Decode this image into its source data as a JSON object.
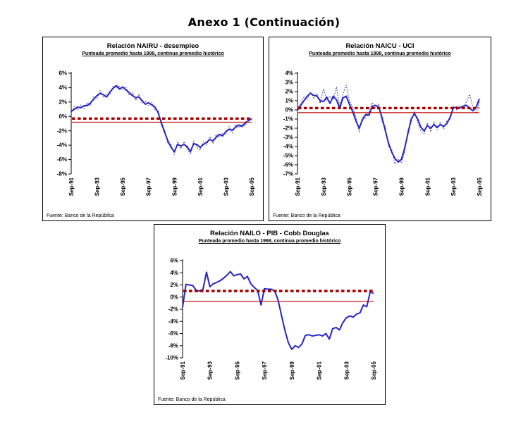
{
  "page": {
    "title": "Anexo 1 (Continuación)"
  },
  "chart_data": [
    {
      "type": "line",
      "title": "Relación NAIRU - desempleo",
      "subtitle": "Punteada promedio hasta 1998, continua promedio histórico",
      "source": "Fuente: Banco de la República",
      "x_tick_labels": [
        "Sep-91",
        "Sep-93",
        "Sep-95",
        "Sep-97",
        "Sep-99",
        "Sep-01",
        "Sep-03",
        "Sep-05"
      ],
      "points_per_tick": 8,
      "ylim": [
        -8,
        6
      ],
      "yticks": [
        6,
        4,
        2,
        0,
        -2,
        -4,
        -6,
        -8
      ],
      "ytick_labels": [
        "6%",
        "4%",
        "2%",
        "0%",
        "-2%",
        "-4%",
        "-6%",
        "-8%"
      ],
      "grid": false,
      "legend": "none",
      "series": [
        {
          "name": "brecha continua (promedio histórico)",
          "style": "solid",
          "color": "#2424cd",
          "values": [
            0.7,
            1.0,
            1.3,
            1.2,
            1.5,
            1.5,
            1.9,
            2.4,
            2.9,
            3.2,
            3.0,
            2.7,
            3.4,
            3.9,
            4.3,
            3.8,
            4.1,
            3.7,
            3.3,
            2.9,
            2.6,
            2.7,
            2.2,
            1.7,
            1.9,
            1.6,
            1.3,
            0.5,
            -0.9,
            -2.2,
            -3.4,
            -4.3,
            -4.9,
            -3.9,
            -4.1,
            -3.9,
            -4.2,
            -4.9,
            -3.8,
            -3.9,
            -4.3,
            -3.9,
            -3.6,
            -3.2,
            -3.4,
            -2.9,
            -2.5,
            -2.7,
            -2.1,
            -1.8,
            -1.9,
            -1.5,
            -1.2,
            -1.4,
            -0.9,
            -0.6,
            -0.3
          ]
        },
        {
          "name": "brecha punteada (promedio hasta 1998)",
          "style": "dotted",
          "color": "#303099",
          "values": [
            0.4,
            1.4,
            0.9,
            1.6,
            1.1,
            1.9,
            1.5,
            2.8,
            2.5,
            3.6,
            2.6,
            3.1,
            3.0,
            4.2,
            3.9,
            4.2,
            3.7,
            4.1,
            2.9,
            3.3,
            2.2,
            3.1,
            1.8,
            2.1,
            1.5,
            2.0,
            0.9,
            0.9,
            -1.3,
            -1.8,
            -3.8,
            -3.9,
            -5.3,
            -3.5,
            -4.5,
            -3.5,
            -4.6,
            -5.3,
            -3.4,
            -4.3,
            -4.7,
            -3.5,
            -4.0,
            -2.8,
            -3.8,
            -2.5,
            -2.9,
            -2.3,
            -2.5,
            -1.4,
            -2.3,
            -1.1,
            -1.6,
            -1.0,
            -1.3,
            -0.2,
            -0.5
          ]
        }
      ],
      "ref_lines": [
        {
          "name": "promedio hasta 1998 (punteada)",
          "style": "dotted",
          "color": "#a50000",
          "value": -0.3
        },
        {
          "name": "promedio histórico (continua)",
          "style": "solid",
          "color": "#c00000",
          "value": -0.8
        }
      ]
    },
    {
      "type": "line",
      "title": "Relación NAICU - UCI",
      "subtitle": "Punteada promedio hasta 1998, continua promedio histórico",
      "source": "Fuente: Banco de la República",
      "x_tick_labels": [
        "Sep-91",
        "Sep-93",
        "Sep-95",
        "Sep-97",
        "Sep-99",
        "Sep-01",
        "Sep-03",
        "Sep-05"
      ],
      "points_per_tick": 8,
      "ylim": [
        -7,
        4
      ],
      "yticks": [
        4,
        3,
        2,
        1,
        0,
        -1,
        -2,
        -3,
        -4,
        -5,
        -6,
        -7
      ],
      "ytick_labels": [
        "4%",
        "3%",
        "2%",
        "1%",
        "0%",
        "-1%",
        "-2%",
        "-3%",
        "-4%",
        "-5%",
        "-6%",
        "-7%"
      ],
      "grid": false,
      "legend": "none",
      "series": [
        {
          "name": "brecha continua (promedio histórico)",
          "style": "solid",
          "color": "#2424cd",
          "values": [
            0.0,
            0.5,
            1.0,
            1.5,
            1.8,
            1.6,
            1.5,
            1.0,
            0.9,
            1.4,
            0.7,
            1.5,
            1.1,
            0.2,
            1.3,
            1.5,
            0.6,
            -0.2,
            -1.2,
            -2.0,
            -1.1,
            -0.5,
            -0.6,
            0.4,
            0.5,
            0.3,
            -0.8,
            -2.2,
            -3.6,
            -4.6,
            -5.3,
            -5.7,
            -5.4,
            -4.2,
            -2.6,
            -1.0,
            -0.4,
            -1.0,
            -1.9,
            -2.3,
            -1.7,
            -2.0,
            -1.6,
            -1.9,
            -1.6,
            -1.8,
            -1.5,
            -0.8,
            0.2,
            0.3,
            0.2,
            0.4,
            0.5,
            0.2,
            -0.1,
            0.3,
            1.2
          ]
        },
        {
          "name": "brecha punteada (promedio hasta 1998)",
          "style": "dotted",
          "color": "#303099",
          "values": [
            0.1,
            0.8,
            1.4,
            1.1,
            2.0,
            1.3,
            1.8,
            0.7,
            2.3,
            1.0,
            1.5,
            1.1,
            2.5,
            0.4,
            1.7,
            2.7,
            1.0,
            0.2,
            -0.8,
            -2.4,
            -0.7,
            -0.9,
            -0.2,
            0.8,
            0.2,
            0.7,
            -1.3,
            -1.8,
            -4.0,
            -4.3,
            -5.9,
            -5.4,
            -5.8,
            -4.6,
            -2.2,
            -1.4,
            -0.1,
            -1.4,
            -2.3,
            -2.6,
            -1.4,
            -2.4,
            -1.3,
            -2.2,
            -1.3,
            -2.1,
            -1.2,
            -1.1,
            0.4,
            0.0,
            0.5,
            0.1,
            0.9,
            1.7,
            0.3,
            -0.4,
            0.9
          ]
        }
      ],
      "ref_lines": [
        {
          "name": "promedio hasta 1998 (punteada)",
          "style": "dotted",
          "color": "#a50000",
          "value": 0.2
        },
        {
          "name": "promedio histórico (continua)",
          "style": "solid",
          "color": "#c00000",
          "value": -0.3
        }
      ]
    },
    {
      "type": "line",
      "title": "Relación NAILO - PIB - Cobb Douglas",
      "subtitle": "Punteada promedio hasta 1998, continua promedio histórico",
      "source": "Fuente: Banco de la República",
      "x_tick_labels": [
        "Sep-91",
        "Sep-93",
        "Sep-95",
        "Sep-97",
        "Sep-99",
        "Sep-01",
        "Sep-03",
        "Sep-05"
      ],
      "points_per_tick": 8,
      "ylim": [
        -10,
        6
      ],
      "yticks": [
        6,
        4,
        2,
        0,
        -2,
        -4,
        -6,
        -8,
        -10
      ],
      "ytick_labels": [
        "6%",
        "4%",
        "2%",
        "0%",
        "-2%",
        "-4%",
        "-6%",
        "-8%",
        "-10%"
      ],
      "grid": false,
      "legend": "none",
      "series": [
        {
          "name": "brecha continua (promedio histórico)",
          "style": "solid",
          "color": "#2424cd",
          "values": [
            -1.7,
            2.1,
            2.0,
            1.9,
            1.1,
            1.0,
            1.3,
            4.1,
            1.7,
            2.2,
            2.4,
            2.7,
            3.1,
            3.6,
            4.2,
            3.5,
            3.7,
            3.8,
            3.0,
            3.4,
            2.2,
            1.6,
            1.1,
            -1.3,
            1.4,
            1.3,
            1.3,
            1.0,
            -0.5,
            -3.0,
            -5.5,
            -7.5,
            -8.6,
            -8.0,
            -8.3,
            -7.7,
            -6.3,
            -6.2,
            -6.4,
            -6.3,
            -6.2,
            -6.4,
            -6.0,
            -6.9,
            -5.2,
            -5.0,
            -5.4,
            -4.2,
            -3.4,
            -3.1,
            -3.3,
            -2.8,
            -2.6,
            -1.3,
            -1.6,
            0.9,
            0.6
          ]
        }
      ],
      "ref_lines": [
        {
          "name": "promedio hasta 1998 (punteada)",
          "style": "dotted",
          "color": "#a50000",
          "value": 1.0
        },
        {
          "name": "promedio histórico (continua)",
          "style": "solid",
          "color": "#c00000",
          "value": -0.7
        }
      ]
    }
  ]
}
